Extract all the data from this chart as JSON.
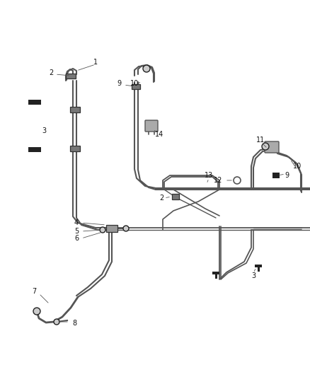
{
  "background_color": "#ffffff",
  "line_color": "#555555",
  "dark_color": "#222222",
  "fig_width": 4.38,
  "fig_height": 5.33,
  "dpi": 100,
  "tube_lw": 1.3,
  "tube_lw2": 1.0,
  "label_fs": 7.0
}
